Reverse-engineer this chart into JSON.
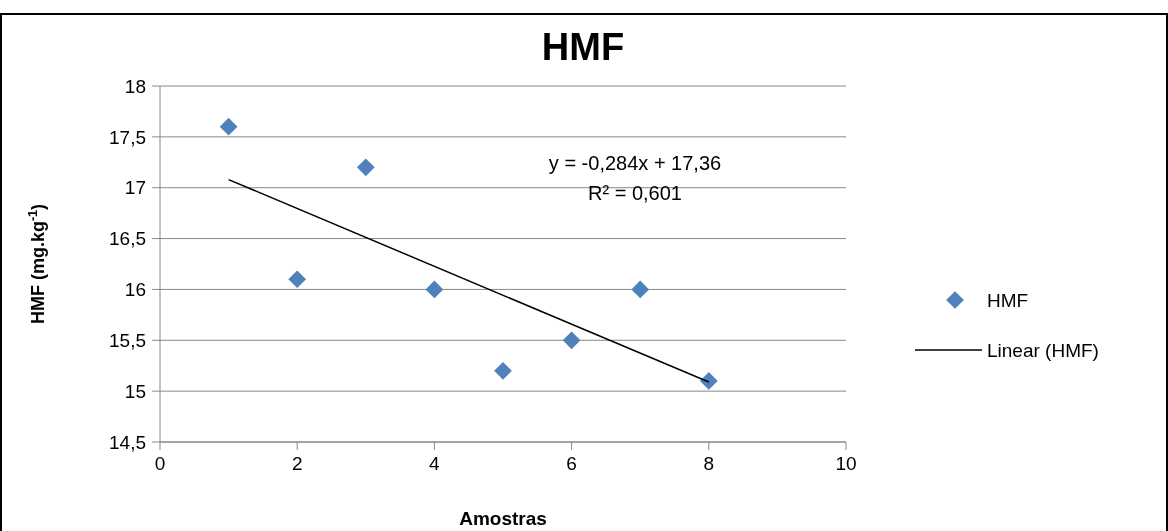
{
  "chart_data": {
    "type": "scatter",
    "title": "HMF",
    "xlabel": "Amostras",
    "ylabel": "HMF (mg.kg$^{-1}$)",
    "x": [
      1,
      2,
      3,
      4,
      5,
      6,
      7,
      8
    ],
    "series": [
      {
        "name": "HMF",
        "color": "#4f81bd",
        "values": [
          17.6,
          16.1,
          17.2,
          16.0,
          15.2,
          15.5,
          16.0,
          15.1
        ],
        "marker": "diamond"
      },
      {
        "name": "Linear (HMF)",
        "type": "line",
        "color": "#000000",
        "x": [
          1,
          8
        ],
        "values": [
          17.08,
          15.09
        ],
        "marker": "none"
      }
    ],
    "xlim": [
      0,
      10
    ],
    "xticks": [
      0,
      2,
      4,
      6,
      8,
      10
    ],
    "ylim": [
      14.5,
      18
    ],
    "yticks": [
      {
        "value": 14.5,
        "label": "14,5"
      },
      15,
      {
        "value": 15.5,
        "label": "15,5"
      },
      16,
      {
        "value": 16.5,
        "label": "16,5"
      },
      17,
      {
        "value": 17.5,
        "label": "17,5"
      },
      18
    ],
    "annotations": [
      "y = -0,284x + 17,36",
      "R² = 0,601"
    ],
    "grid": "y",
    "legend": "right"
  }
}
